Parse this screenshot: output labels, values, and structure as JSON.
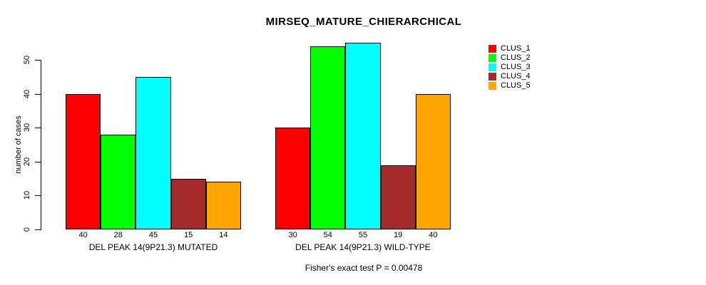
{
  "chart_data": {
    "type": "bar",
    "title": "MIRSEQ_MATURE_CHIERARCHICAL",
    "ylabel": "number of cases",
    "xlabel": "",
    "ylim": [
      0,
      57
    ],
    "yticks": [
      0,
      10,
      20,
      30,
      40,
      50
    ],
    "grid": false,
    "legend_position": "right",
    "bar_value_labels": true,
    "categories": [
      "DEL PEAK 14(9P21.3) MUTATED",
      "DEL PEAK 14(9P21.3) WILD-TYPE"
    ],
    "series": [
      {
        "name": "CLUS_1",
        "color": "#FF0000",
        "values": [
          40,
          30
        ]
      },
      {
        "name": "CLUS_2",
        "color": "#00FF00",
        "values": [
          28,
          54
        ]
      },
      {
        "name": "CLUS_3",
        "color": "#00FFFF",
        "values": [
          45,
          55
        ]
      },
      {
        "name": "CLUS_4",
        "color": "#A52A2A",
        "values": [
          15,
          19
        ]
      },
      {
        "name": "CLUS_5",
        "color": "#FFA500",
        "values": [
          14,
          40
        ]
      }
    ],
    "annotation": "Fisher's exact test P = 0.00478"
  }
}
